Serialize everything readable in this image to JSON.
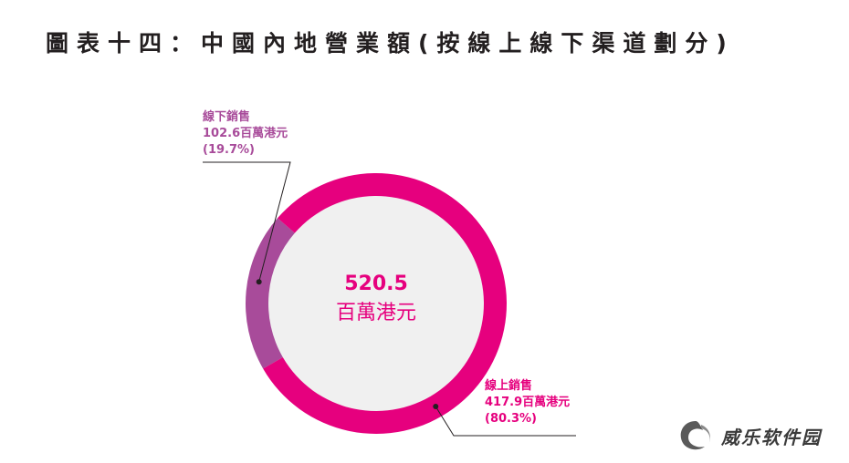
{
  "title": "圖表十四：中國內地營業額(按線上線下渠道劃分)",
  "chart_data": {
    "type": "pie",
    "title": "圖表十四：中國內地營業額(按線上線下渠道劃分)",
    "center_value": "520.5",
    "center_unit": "百萬港元",
    "total": 520.5,
    "slices": [
      {
        "name": "線下銷售",
        "value": 102.6,
        "value_label": "102.6百萬港元",
        "percent": 19.7,
        "percent_label": "(19.7%)",
        "color": "#a84b9a"
      },
      {
        "name": "線上銷售",
        "value": 417.9,
        "value_label": "417.9百萬港元",
        "percent": 80.3,
        "percent_label": "(80.3%)",
        "color": "#e6007e"
      }
    ]
  },
  "colors": {
    "offline": "#a84b9a",
    "online": "#e6007e",
    "title": "#231f20",
    "leader": "#231f20"
  },
  "watermark": {
    "text": "威乐软件园",
    "icon": "swirl-logo-icon"
  }
}
